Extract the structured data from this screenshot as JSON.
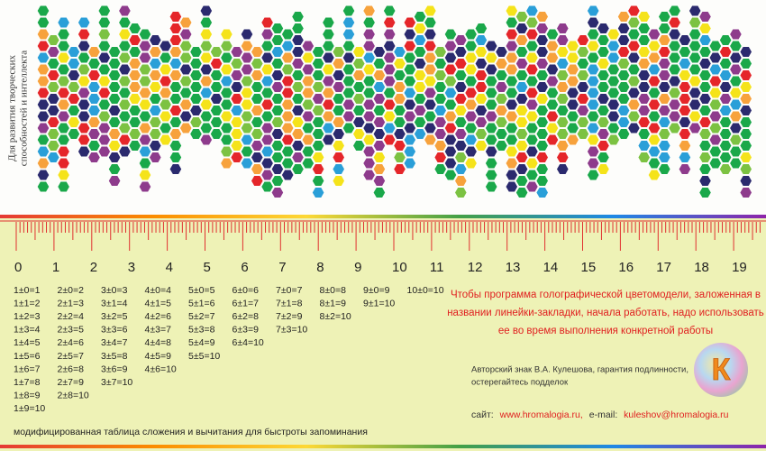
{
  "side_caption": [
    "Для развития творческих",
    "способностей и интеллекта"
  ],
  "ruler": {
    "labels": [
      "0",
      "1",
      "2",
      "3",
      "4",
      "5",
      "6",
      "7",
      "8",
      "9",
      "10",
      "11",
      "12",
      "13",
      "14",
      "15",
      "16",
      "17",
      "18",
      "19"
    ]
  },
  "table": {
    "columns": [
      [
        "1±0=1",
        "1±1=2",
        "1±2=3",
        "1±3=4",
        "1±4=5",
        "1±5=6",
        "1±6=7",
        "1±7=8",
        "1±8=9",
        "1±9=10"
      ],
      [
        "2±0=2",
        "2±1=3",
        "2±2=4",
        "2±3=5",
        "2±4=6",
        "2±5=7",
        "2±6=8",
        "2±7=9",
        "2±8=10"
      ],
      [
        "3±0=3",
        "3±1=4",
        "3±2=5",
        "3±3=6",
        "3±4=7",
        "3±5=8",
        "3±6=9",
        "3±7=10"
      ],
      [
        "4±0=4",
        "4±1=5",
        "4±2=6",
        "4±3=7",
        "4±4=8",
        "4±5=9",
        "4±6=10"
      ],
      [
        "5±0=5",
        "5±1=6",
        "5±2=7",
        "5±3=8",
        "5±4=9",
        "5±5=10"
      ],
      [
        "6±0=6",
        "6±1=7",
        "6±2=8",
        "6±3=9",
        "6±4=10"
      ],
      [
        "7±0=7",
        "7±1=8",
        "7±2=9",
        "7±3=10"
      ],
      [
        "8±0=8",
        "8±1=9",
        "8±2=10"
      ],
      [
        "9±0=9",
        "9±1=10"
      ],
      [
        "10±0=10"
      ]
    ]
  },
  "note": {
    "lines": [
      "Чтобы программа голографической цветомодели, заложенная в",
      "названии линейки-закладки, начала работать, надо использовать",
      "ее во время выполнения конкретной работы"
    ]
  },
  "author": {
    "lines": [
      "Авторский знак В.А. Кулешова, гарантия подлинности,",
      "остерегайтесь подделок"
    ]
  },
  "logo": {
    "letter": "К"
  },
  "contacts": {
    "site_label": "сайт:",
    "site": "www.hromalogia.ru,",
    "email_label": "e-mail:",
    "email": "kuleshov@hromalogia.ru"
  },
  "caption": "модифицированная таблица сложения и вычитания для быстроты запоминания"
}
